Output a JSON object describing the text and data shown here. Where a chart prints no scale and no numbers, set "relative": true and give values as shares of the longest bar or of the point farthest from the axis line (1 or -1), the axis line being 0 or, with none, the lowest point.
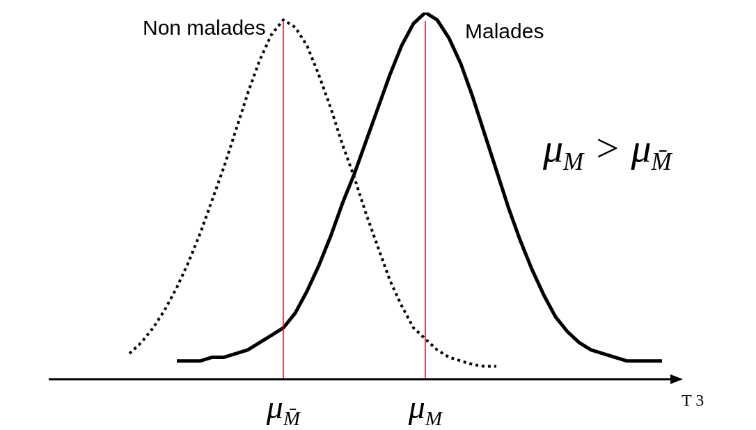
{
  "chart_data": {
    "type": "line",
    "relative": true,
    "xlabel": "T 3",
    "categories": [
      null,
      null,
      null,
      null,
      null,
      null,
      null,
      null,
      null,
      null,
      null,
      null,
      null,
      null,
      "μ$_{M̄}$",
      null,
      null,
      null,
      null,
      null,
      null,
      null,
      null,
      null,
      null,
      null,
      "μ$_{M}$",
      null,
      null,
      null,
      null,
      null,
      null,
      null,
      null,
      null,
      null,
      null,
      null,
      null,
      null,
      null,
      null,
      null,
      null,
      null,
      null,
      null
    ],
    "series": [
      {
        "name": "Non malades",
        "color": "#000000",
        "line_style": "dotted",
        "values": [
          null,
          0.07,
          0.1,
          0.14,
          0.19,
          0.25,
          0.32,
          0.4,
          0.49,
          0.58,
          0.68,
          0.78,
          0.87,
          0.94,
          0.98,
          0.96,
          0.91,
          0.83,
          0.74,
          0.64,
          0.55,
          0.45,
          0.36,
          0.27,
          0.2,
          0.14,
          0.11,
          0.08,
          0.06,
          0.05,
          0.04,
          0.035,
          0.035,
          null,
          null,
          null,
          null,
          null,
          null,
          null,
          null,
          null,
          null,
          null,
          null,
          null,
          null,
          null
        ]
      },
      {
        "name": "Malades",
        "color": "#000000",
        "line_style": "solid",
        "values": [
          null,
          null,
          null,
          null,
          null,
          0.05,
          0.05,
          0.05,
          0.06,
          0.06,
          0.07,
          0.08,
          0.1,
          0.12,
          0.14,
          0.18,
          0.24,
          0.31,
          0.39,
          0.48,
          0.56,
          0.65,
          0.74,
          0.83,
          0.91,
          0.97,
          1,
          0.98,
          0.93,
          0.86,
          0.77,
          0.67,
          0.57,
          0.47,
          0.38,
          0.3,
          0.23,
          0.17,
          0.13,
          0.1,
          0.08,
          0.07,
          0.06,
          0.05,
          0.05,
          0.05,
          0.05,
          null
        ]
      }
    ],
    "ref_lines": [
      {
        "axis": "x",
        "value": "μ$_{M̄}$",
        "color": "#ff0000"
      },
      {
        "axis": "x",
        "value": "μ$_{M}$",
        "color": "#ff0000"
      }
    ],
    "annotations": [
      "μ$_{M}$ > μ$_{M̄}$"
    ],
    "grid": false,
    "legend": false,
    "marker": "none"
  }
}
